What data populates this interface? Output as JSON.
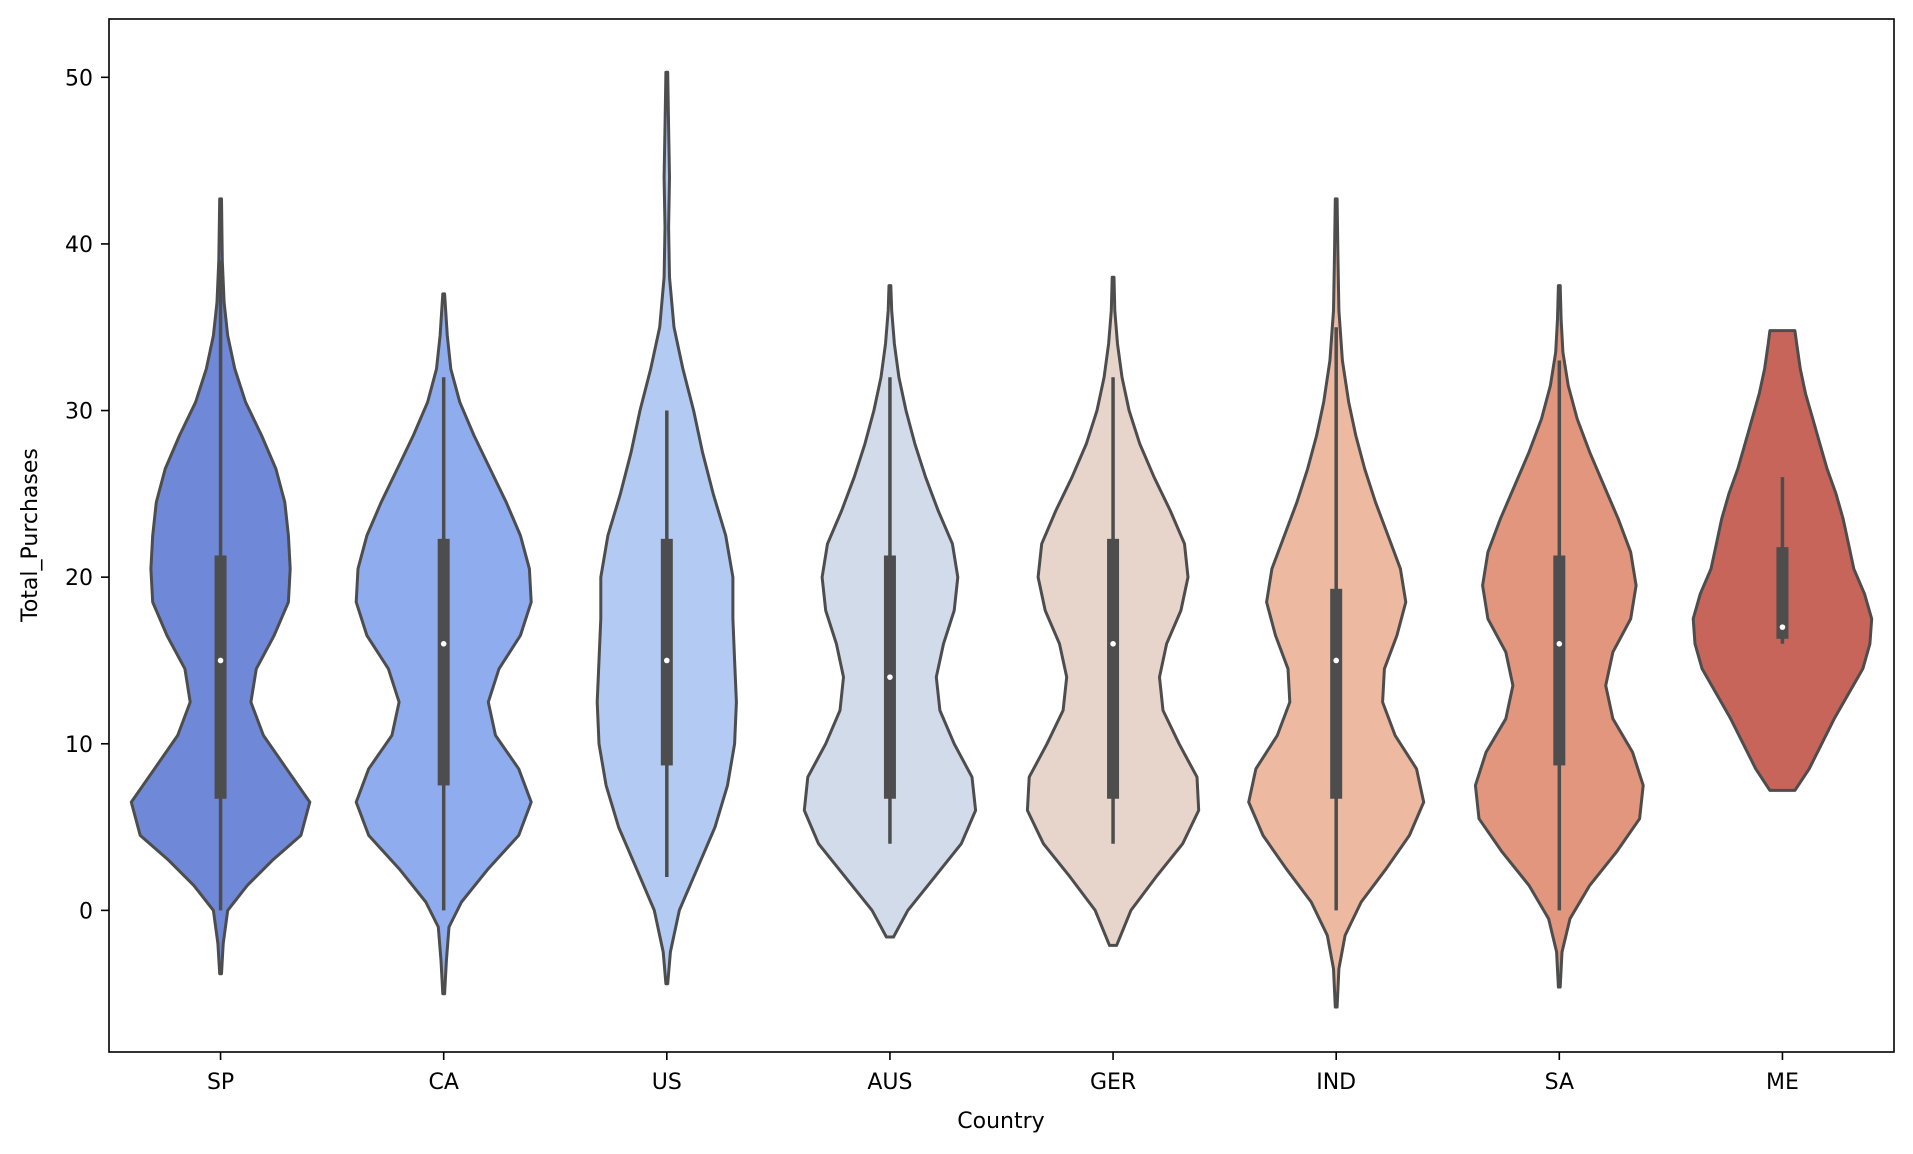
{
  "chart_data": {
    "type": "violin",
    "title": "",
    "xlabel": "Country",
    "ylabel": "Total_Purchases",
    "ylim": [
      -8.5,
      53.5
    ],
    "yticks": [
      0,
      10,
      20,
      30,
      40,
      50
    ],
    "ytick_labels": [
      "0",
      "10",
      "20",
      "30",
      "40",
      "50"
    ],
    "grid": false,
    "legend": "none",
    "categories": [
      "SP",
      "CA",
      "US",
      "AUS",
      "GER",
      "IND",
      "SA",
      "ME"
    ],
    "series": [
      {
        "category": "SP",
        "color": "#6f89d8",
        "density_y": [
          -3.8,
          -2,
          0,
          1.5,
          3,
          4.5,
          6.5,
          8.5,
          10.5,
          12.5,
          14.5,
          16.5,
          18.5,
          20.5,
          22.5,
          24.5,
          26.5,
          28.5,
          30.5,
          32.5,
          34.5,
          36.5,
          39,
          42.7
        ],
        "density_width": [
          0.01,
          0.03,
          0.08,
          0.3,
          0.58,
          0.9,
          1.0,
          0.74,
          0.48,
          0.34,
          0.4,
          0.6,
          0.76,
          0.78,
          0.76,
          0.72,
          0.62,
          0.46,
          0.28,
          0.16,
          0.08,
          0.04,
          0.02,
          0.01
        ],
        "q1": 6.7,
        "median": 15,
        "q3": 21.3,
        "whisker_low": 0,
        "whisker_high": 39
      },
      {
        "category": "CA",
        "color": "#8eacee",
        "density_y": [
          -5,
          -3,
          -1,
          0.5,
          2.5,
          4.5,
          6.5,
          8.5,
          10.5,
          12.5,
          14.5,
          16.5,
          18.5,
          20.5,
          22.5,
          24.5,
          26.5,
          28.5,
          30.5,
          32.5,
          34.5,
          37
        ],
        "density_width": [
          0.01,
          0.03,
          0.06,
          0.2,
          0.5,
          0.84,
          0.98,
          0.84,
          0.58,
          0.5,
          0.62,
          0.86,
          0.98,
          0.96,
          0.86,
          0.7,
          0.52,
          0.34,
          0.18,
          0.08,
          0.04,
          0.01
        ],
        "q1": 7.5,
        "median": 16,
        "q3": 22.3,
        "whisker_low": 0,
        "whisker_high": 32
      },
      {
        "category": "US",
        "color": "#b3cbf3",
        "density_y": [
          -4.4,
          -2.5,
          0,
          2.5,
          5,
          7.5,
          10,
          12.5,
          15,
          17.5,
          20,
          22.5,
          25,
          27.5,
          30,
          32.5,
          35,
          38,
          41,
          44,
          47,
          50.3
        ],
        "density_width": [
          0.01,
          0.04,
          0.14,
          0.34,
          0.54,
          0.68,
          0.76,
          0.78,
          0.76,
          0.74,
          0.74,
          0.66,
          0.52,
          0.4,
          0.3,
          0.18,
          0.08,
          0.03,
          0.02,
          0.03,
          0.02,
          0.01
        ],
        "q1": 8.7,
        "median": 15,
        "q3": 22.3,
        "whisker_low": 2,
        "whisker_high": 30
      },
      {
        "category": "AUS",
        "color": "#d2dbea",
        "density_y": [
          -1.6,
          0,
          2,
          4,
          6,
          8,
          10,
          12,
          14,
          16,
          18,
          20,
          22,
          24,
          26,
          28,
          30,
          32,
          34,
          36,
          37.5
        ],
        "density_width": [
          0.04,
          0.2,
          0.5,
          0.8,
          0.96,
          0.92,
          0.72,
          0.56,
          0.52,
          0.6,
          0.72,
          0.76,
          0.7,
          0.54,
          0.4,
          0.28,
          0.18,
          0.1,
          0.05,
          0.02,
          0.01
        ],
        "q1": 6.7,
        "median": 14,
        "q3": 21.3,
        "whisker_low": 4,
        "whisker_high": 32
      },
      {
        "category": "GER",
        "color": "#e7d5cc",
        "density_y": [
          -2.1,
          0,
          2,
          4,
          6,
          8,
          10,
          12,
          14,
          16,
          18,
          20,
          22,
          24,
          26,
          28,
          30,
          32,
          34,
          36,
          38
        ],
        "density_width": [
          0.04,
          0.2,
          0.48,
          0.78,
          0.96,
          0.94,
          0.74,
          0.56,
          0.52,
          0.6,
          0.76,
          0.84,
          0.8,
          0.64,
          0.46,
          0.3,
          0.18,
          0.1,
          0.05,
          0.02,
          0.01
        ],
        "q1": 6.7,
        "median": 16,
        "q3": 22.3,
        "whisker_low": 4,
        "whisker_high": 32
      },
      {
        "category": "IND",
        "color": "#edb9a0",
        "density_y": [
          -5.8,
          -3.5,
          -1.5,
          0.5,
          2.5,
          4.5,
          6.5,
          8.5,
          10.5,
          12.5,
          14.5,
          16.5,
          18.5,
          20.5,
          22.5,
          24.5,
          26.5,
          28.5,
          30.5,
          33,
          36,
          39,
          42.7
        ],
        "density_width": [
          0.01,
          0.03,
          0.1,
          0.28,
          0.56,
          0.82,
          0.98,
          0.9,
          0.66,
          0.52,
          0.54,
          0.68,
          0.78,
          0.72,
          0.58,
          0.44,
          0.32,
          0.22,
          0.14,
          0.07,
          0.03,
          0.02,
          0.01
        ],
        "q1": 6.7,
        "median": 15,
        "q3": 19.3,
        "whisker_low": 0,
        "whisker_high": 35
      },
      {
        "category": "SA",
        "color": "#e2967d",
        "density_y": [
          -4.6,
          -2.5,
          -0.5,
          1.5,
          3.5,
          5.5,
          7.5,
          9.5,
          11.5,
          13.5,
          15.5,
          17.5,
          19.5,
          21.5,
          23.5,
          25.5,
          27.5,
          29.5,
          31.5,
          33.5,
          35.5,
          37.5
        ],
        "density_width": [
          0.01,
          0.03,
          0.12,
          0.34,
          0.64,
          0.9,
          0.94,
          0.82,
          0.6,
          0.52,
          0.6,
          0.8,
          0.86,
          0.8,
          0.66,
          0.5,
          0.34,
          0.2,
          0.1,
          0.04,
          0.02,
          0.01
        ],
        "q1": 8.7,
        "median": 16,
        "q3": 21.3,
        "whisker_low": 0,
        "whisker_high": 33
      },
      {
        "category": "ME",
        "color": "#c8655a",
        "density_y": [
          7.2,
          8.5,
          10,
          11.5,
          13,
          14.5,
          16,
          17.5,
          19,
          20.5,
          22,
          23.5,
          25,
          26.5,
          28,
          29.5,
          31,
          32.5,
          34,
          34.8
        ],
        "density_width": [
          0.14,
          0.3,
          0.44,
          0.58,
          0.74,
          0.9,
          0.98,
          1.0,
          0.92,
          0.8,
          0.74,
          0.68,
          0.6,
          0.5,
          0.42,
          0.34,
          0.26,
          0.2,
          0.16,
          0.14
        ],
        "q1": 16.3,
        "median": 17,
        "q3": 21.8,
        "whisker_low": 16,
        "whisker_high": 26
      }
    ]
  }
}
